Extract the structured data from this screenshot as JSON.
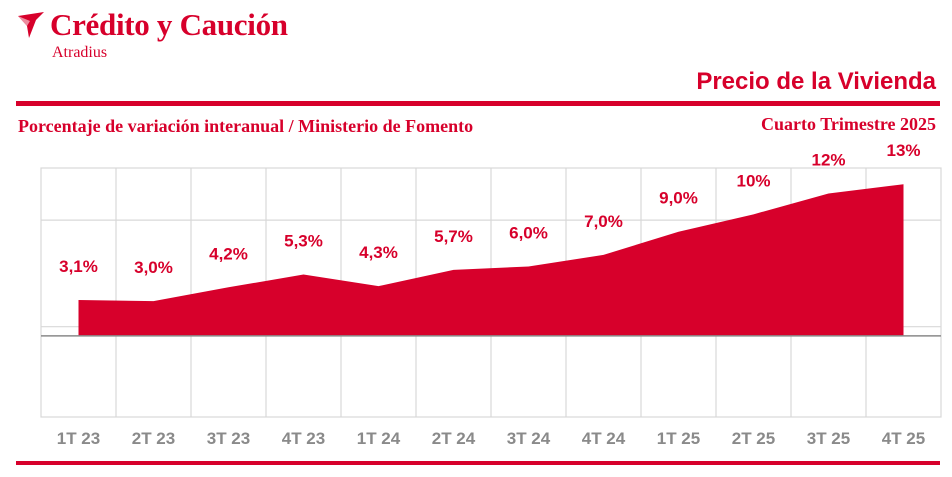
{
  "header": {
    "brand": "Crédito y Caución",
    "brand_sub": "Atradius",
    "title": "Precio de la Vivienda",
    "subtitle": "Porcentaje de variación interanual / Ministerio de Fomento",
    "period": "Cuarto Trimestre 2025"
  },
  "logo": {
    "icon": "atradius-wing-icon"
  },
  "colors": {
    "accent": "#d7002b",
    "grid": "#d8d8d8",
    "axis_text": "#8a8a8a"
  },
  "chart_data": {
    "type": "area",
    "title": "Precio de la Vivienda",
    "xlabel": "",
    "ylabel": "",
    "grid": true,
    "legend": "none",
    "ylim": [
      -7,
      14.5
    ],
    "categories": [
      "1T 23",
      "2T 23",
      "3T 23",
      "4T 23",
      "1T 24",
      "2T 24",
      "3T 24",
      "4T 24",
      "1T 25",
      "2T 25",
      "3T 25",
      "4T 25"
    ],
    "values": [
      3.1,
      3.0,
      4.2,
      5.3,
      4.3,
      5.7,
      6.0,
      7.0,
      9.0,
      10.5,
      12.3,
      13.1
    ],
    "data_labels": [
      "3,1%",
      "3,0%",
      "4,2%",
      "5,3%",
      "4,3%",
      "5,7%",
      "6,0%",
      "7,0%",
      "9,0%",
      "10%",
      "12%",
      "13%"
    ]
  }
}
